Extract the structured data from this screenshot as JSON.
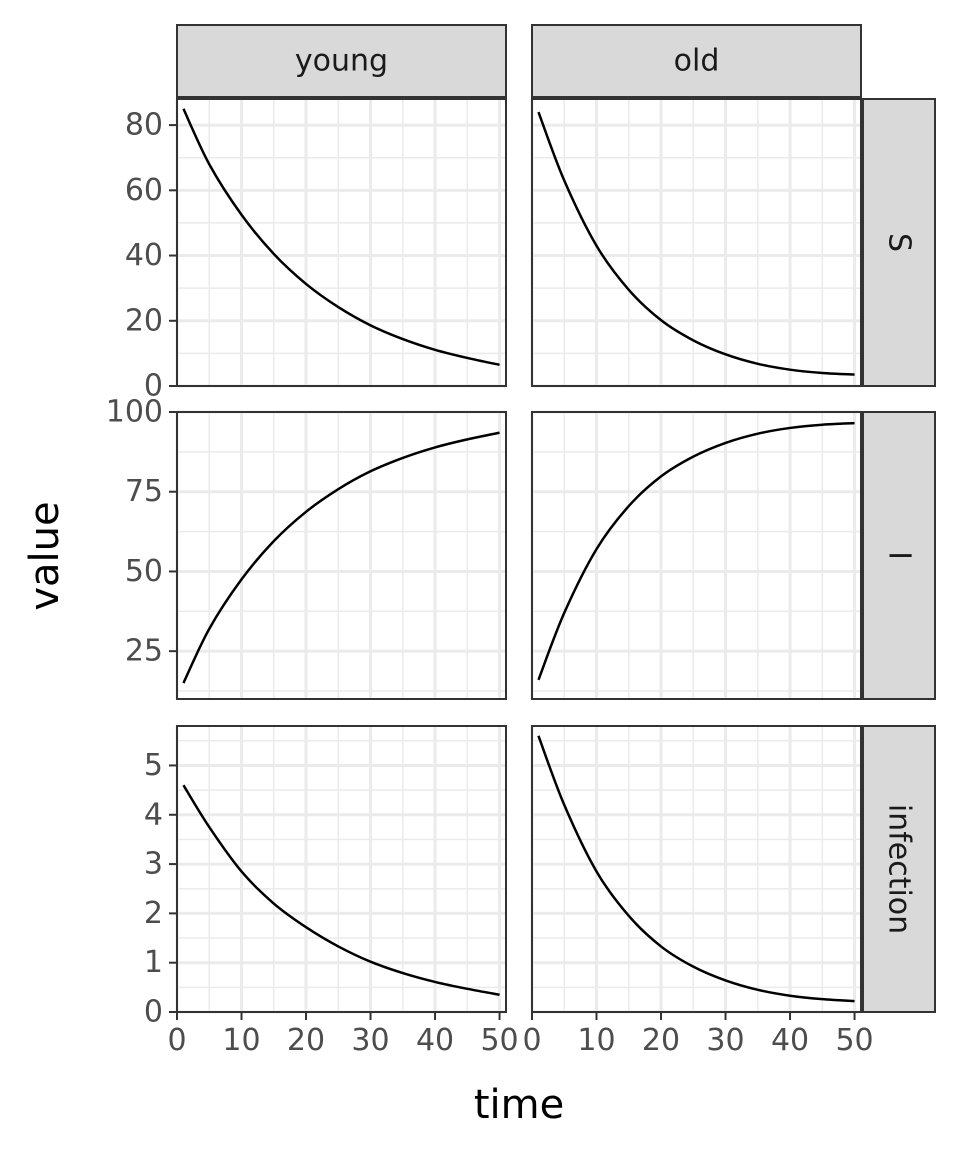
{
  "chart_data": {
    "type": "line",
    "layout": "facet_grid",
    "xlabel": "time",
    "ylabel": "value",
    "x_facet_labels": [
      "young",
      "old"
    ],
    "y_facet_labels": [
      "S",
      "I",
      "infection"
    ],
    "xlim": [
      0,
      51
    ],
    "x_ticks": [
      0,
      10,
      20,
      30,
      40,
      50
    ],
    "x_tick_labels": [
      "0",
      "10",
      "20",
      "30",
      "40",
      "50"
    ],
    "rows": [
      {
        "facet": "S",
        "ylim": [
          0,
          88
        ],
        "y_ticks": [
          0,
          20,
          40,
          60,
          80
        ],
        "y_tick_labels": [
          "0",
          "20",
          "40",
          "60",
          "80"
        ]
      },
      {
        "facet": "I",
        "ylim": [
          10,
          100
        ],
        "y_ticks": [
          25,
          50,
          75,
          100
        ],
        "y_tick_labels": [
          "25",
          "50",
          "75",
          "100"
        ]
      },
      {
        "facet": "infection",
        "ylim": [
          0,
          5.8
        ],
        "y_ticks": [
          0,
          1,
          2,
          3,
          4,
          5
        ],
        "y_tick_labels": [
          "0",
          "1",
          "2",
          "3",
          "4",
          "5"
        ]
      }
    ],
    "panels": [
      {
        "row": "S",
        "column": "young",
        "x": [
          1,
          5,
          10,
          15,
          20,
          25,
          30,
          35,
          40,
          45,
          50
        ],
        "y": [
          85.0,
          68.0,
          52.5,
          40.5,
          31.3,
          24.2,
          18.6,
          14.4,
          11.1,
          8.6,
          6.5
        ]
      },
      {
        "row": "S",
        "column": "old",
        "x": [
          1,
          5,
          10,
          15,
          20,
          25,
          30,
          35,
          40,
          45,
          50
        ],
        "y": [
          84.0,
          63.0,
          43.0,
          29.5,
          20.2,
          14.0,
          9.7,
          6.8,
          5.0,
          4.0,
          3.5
        ]
      },
      {
        "row": "I",
        "column": "young",
        "x": [
          1,
          5,
          10,
          15,
          20,
          25,
          30,
          35,
          40,
          45,
          50
        ],
        "y": [
          15.0,
          32.0,
          47.5,
          59.5,
          68.7,
          75.8,
          81.4,
          85.6,
          88.9,
          91.4,
          93.5
        ]
      },
      {
        "row": "I",
        "column": "old",
        "x": [
          1,
          5,
          10,
          15,
          20,
          25,
          30,
          35,
          40,
          45,
          50
        ],
        "y": [
          16.0,
          37.0,
          57.0,
          70.5,
          79.8,
          86.0,
          90.3,
          93.2,
          95.0,
          96.0,
          96.5
        ]
      },
      {
        "row": "infection",
        "column": "young",
        "x": [
          1,
          5,
          10,
          15,
          20,
          25,
          30,
          35,
          40,
          45,
          50
        ],
        "y": [
          4.6,
          3.75,
          2.85,
          2.2,
          1.72,
          1.33,
          1.02,
          0.79,
          0.61,
          0.47,
          0.35
        ]
      },
      {
        "row": "infection",
        "column": "old",
        "x": [
          1,
          5,
          10,
          15,
          20,
          25,
          30,
          35,
          40,
          45,
          50
        ],
        "y": [
          5.6,
          4.2,
          2.85,
          1.95,
          1.33,
          0.92,
          0.64,
          0.45,
          0.33,
          0.26,
          0.22
        ]
      }
    ]
  }
}
